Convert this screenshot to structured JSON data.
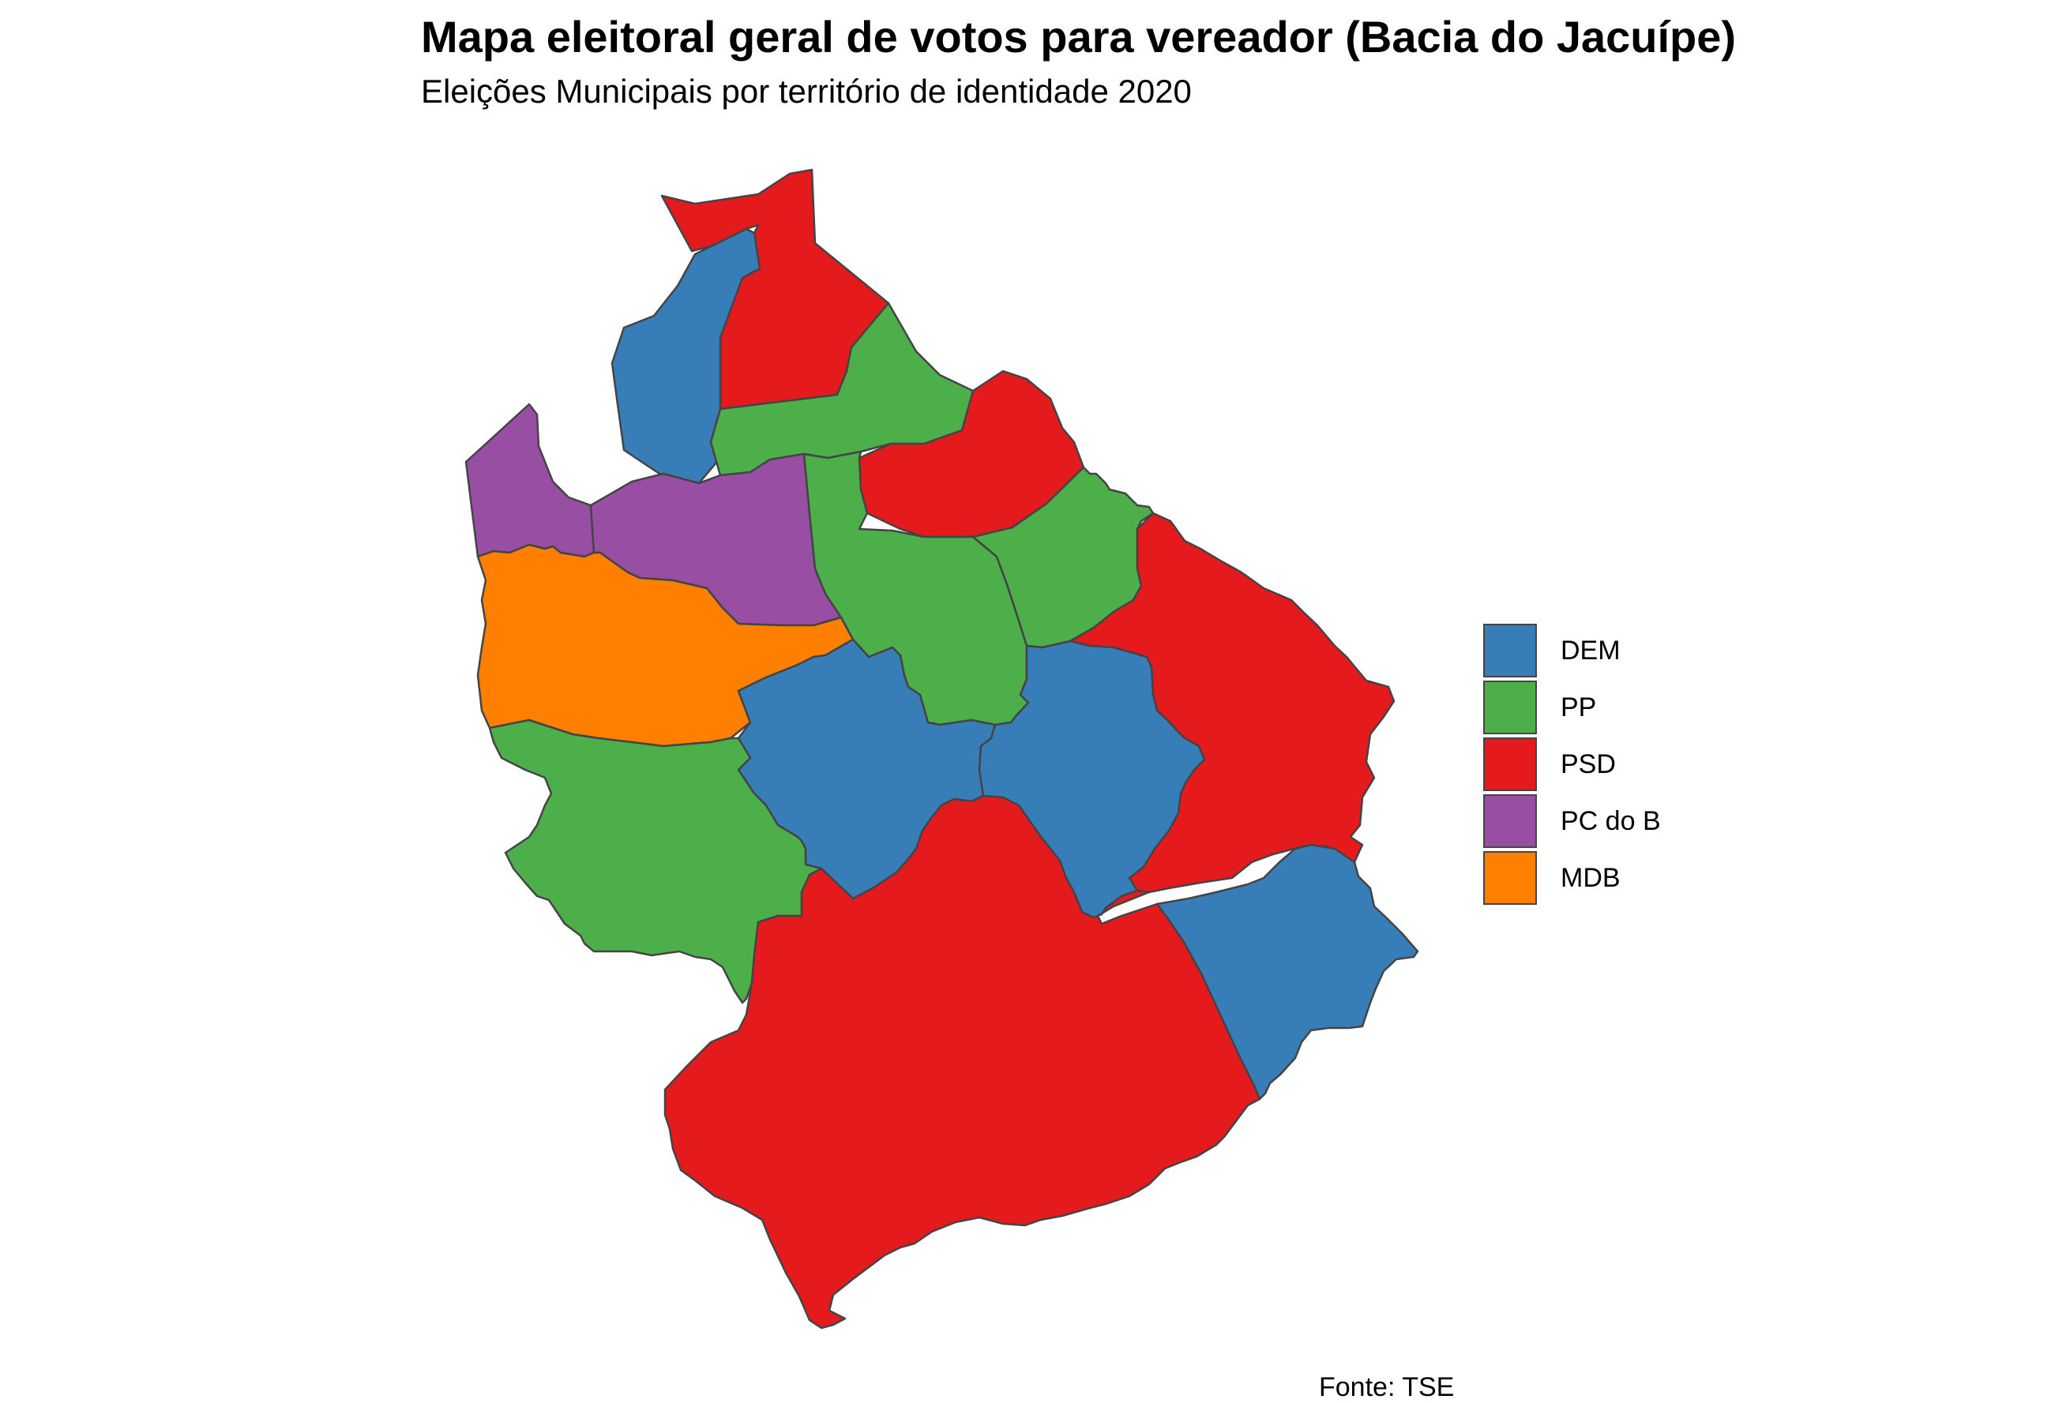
{
  "title": "Mapa eleitoral geral de votos para vereador (Bacia do Jacuípe)",
  "subtitle": "Eleições Municipais por território de identidade 2020",
  "caption": "Fonte: TSE",
  "legend": [
    {
      "label": "DEM",
      "color": "#377EB8"
    },
    {
      "label": "PP",
      "color": "#4DAF4A"
    },
    {
      "label": "PSD",
      "color": "#E41A1C"
    },
    {
      "label": "PC do B",
      "color": "#984EA3"
    },
    {
      "label": "MDB",
      "color": "#FF7F00"
    }
  ],
  "regions": [
    {
      "id": "r-north-psd",
      "party": "PSD"
    },
    {
      "id": "r-north-dem",
      "party": "DEM"
    },
    {
      "id": "r-north-pp",
      "party": "PP"
    },
    {
      "id": "r-northeast-psd",
      "party": "PSD"
    },
    {
      "id": "r-west-pcdob",
      "party": "PC do B"
    },
    {
      "id": "r-center-pcdob",
      "party": "PC do B"
    },
    {
      "id": "r-center-pp",
      "party": "PP"
    },
    {
      "id": "r-east-pp",
      "party": "PP"
    },
    {
      "id": "r-east-psd",
      "party": "PSD"
    },
    {
      "id": "r-west-mdb",
      "party": "MDB"
    },
    {
      "id": "r-center-dem",
      "party": "DEM"
    },
    {
      "id": "r-centereast-dem",
      "party": "DEM"
    },
    {
      "id": "r-southwest-pp",
      "party": "PP"
    },
    {
      "id": "r-south-psd",
      "party": "PSD"
    },
    {
      "id": "r-southeast-dem",
      "party": "DEM"
    }
  ]
}
